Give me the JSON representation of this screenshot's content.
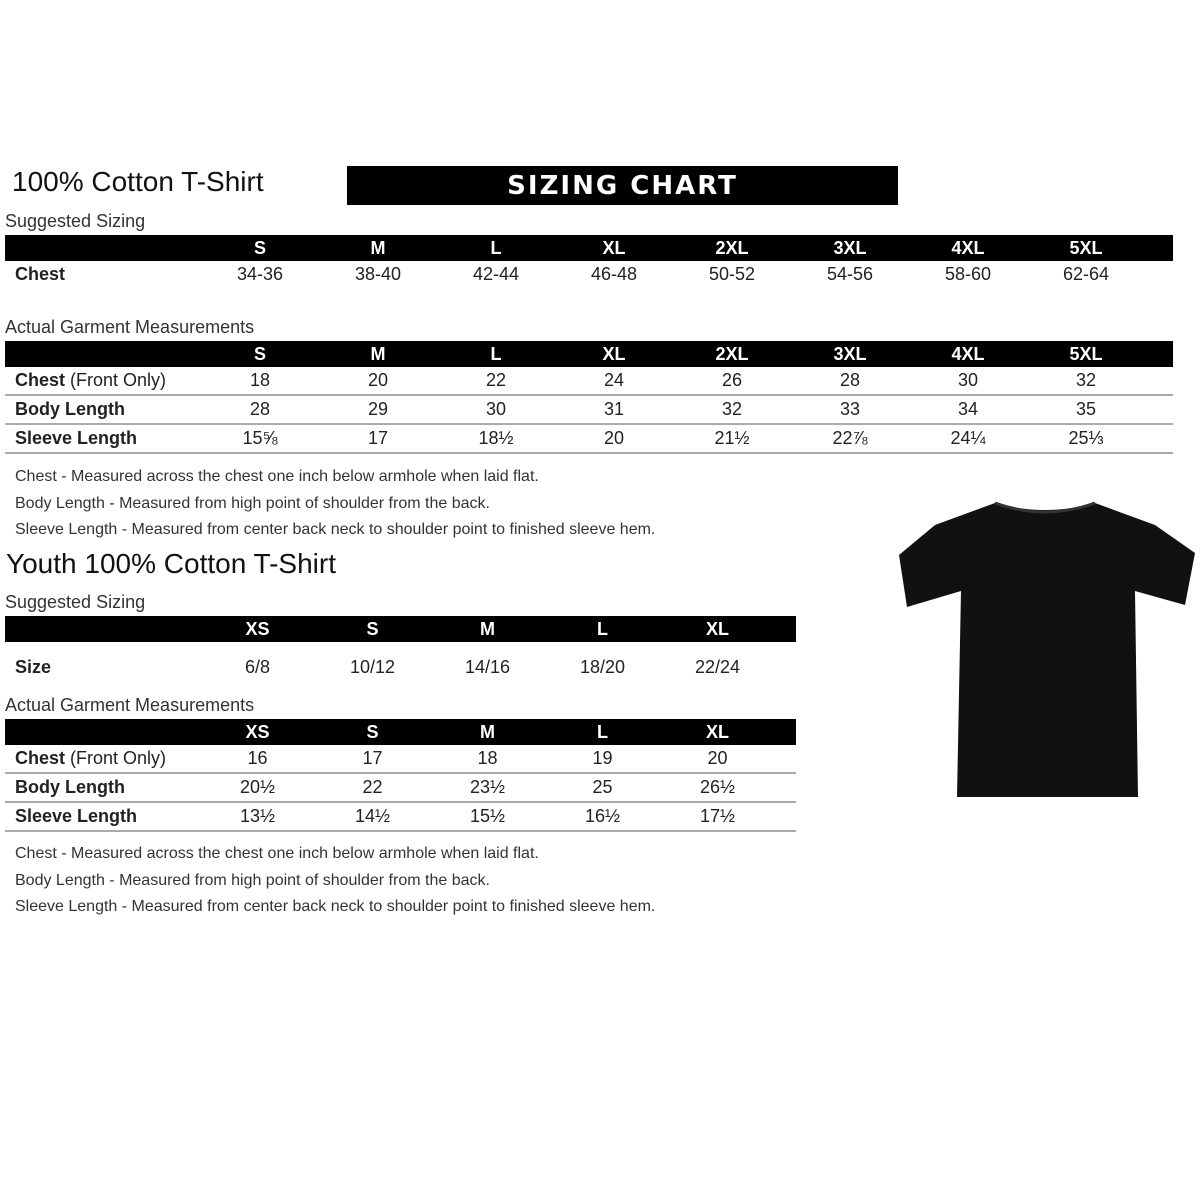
{
  "adult": {
    "title": "100% Cotton T-Shirt",
    "banner": "SIZING CHART",
    "suggested_label": "Suggested Sizing",
    "sizes": [
      "S",
      "M",
      "L",
      "XL",
      "2XL",
      "3XL",
      "4XL",
      "5XL"
    ],
    "suggested_rows": [
      {
        "label": "Chest",
        "values": [
          "34-36",
          "38-40",
          "42-44",
          "46-48",
          "50-52",
          "54-56",
          "58-60",
          "62-64"
        ]
      }
    ],
    "measure_label": "Actual Garment Measurements",
    "measure_rows": [
      {
        "label": "Chest",
        "label_note": " (Front Only)",
        "values": [
          "18",
          "20",
          "22",
          "24",
          "26",
          "28",
          "30",
          "32"
        ]
      },
      {
        "label": "Body Length",
        "label_note": "",
        "values": [
          "28",
          "29",
          "30",
          "31",
          "32",
          "33",
          "34",
          "35"
        ]
      },
      {
        "label": "Sleeve Length",
        "label_note": "",
        "values": [
          "15⅝",
          "17",
          "18½",
          "20",
          "21½",
          "22⅞",
          "24¼",
          "25⅓"
        ]
      }
    ],
    "notes": [
      "Chest - Measured across the chest one inch below armhole when laid flat.",
      "Body Length - Measured from high point of shoulder from the back.",
      "Sleeve Length - Measured from center back neck to shoulder point to finished sleeve hem."
    ]
  },
  "youth": {
    "title": "Youth 100% Cotton T-Shirt",
    "suggested_label": "Suggested Sizing",
    "sizes": [
      "XS",
      "S",
      "M",
      "L",
      "XL"
    ],
    "suggested_rows": [
      {
        "label": "Size",
        "values": [
          "6/8",
          "10/12",
          "14/16",
          "18/20",
          "22/24"
        ]
      }
    ],
    "measure_label": "Actual Garment Measurements",
    "measure_rows": [
      {
        "label": "Chest",
        "label_note": " (Front Only)",
        "values": [
          "16",
          "17",
          "18",
          "19",
          "20"
        ]
      },
      {
        "label": "Body Length",
        "label_note": "",
        "values": [
          "20½",
          "22",
          "23½",
          "25",
          "26½"
        ]
      },
      {
        "label": "Sleeve Length",
        "label_note": "",
        "values": [
          "13½",
          "14½",
          "15½",
          "16½",
          "17½"
        ]
      }
    ],
    "notes": [
      "Chest - Measured across the chest one inch below armhole when laid flat.",
      "Body Length - Measured from high point of shoulder from the back.",
      "Sleeve Length - Measured from center back neck to shoulder point to finished sleeve hem."
    ]
  },
  "shirt_color": "#111111"
}
